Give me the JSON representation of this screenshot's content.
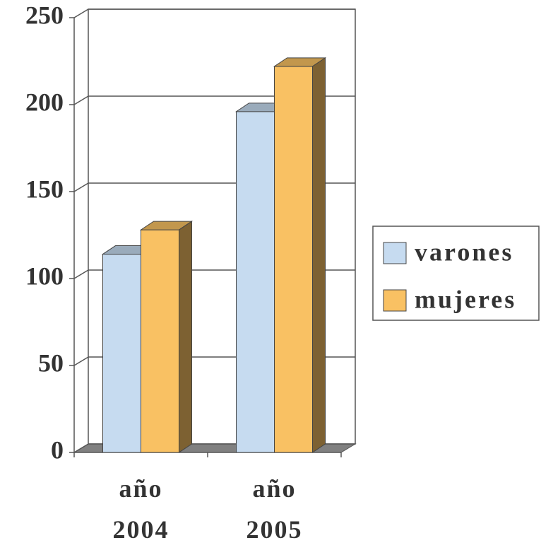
{
  "chart_data": {
    "type": "bar3d",
    "categories": [
      "año 2004",
      "año 2005"
    ],
    "series": [
      {
        "name": "varones",
        "color": "#c6dbf0",
        "values": [
          114,
          196
        ]
      },
      {
        "name": "mujeres",
        "color": "#f9c163",
        "values": [
          128,
          222
        ]
      }
    ],
    "ylim": [
      0,
      250
    ],
    "yticks": [
      0,
      50,
      100,
      150,
      200,
      250
    ],
    "grid": true,
    "legend": "right"
  }
}
